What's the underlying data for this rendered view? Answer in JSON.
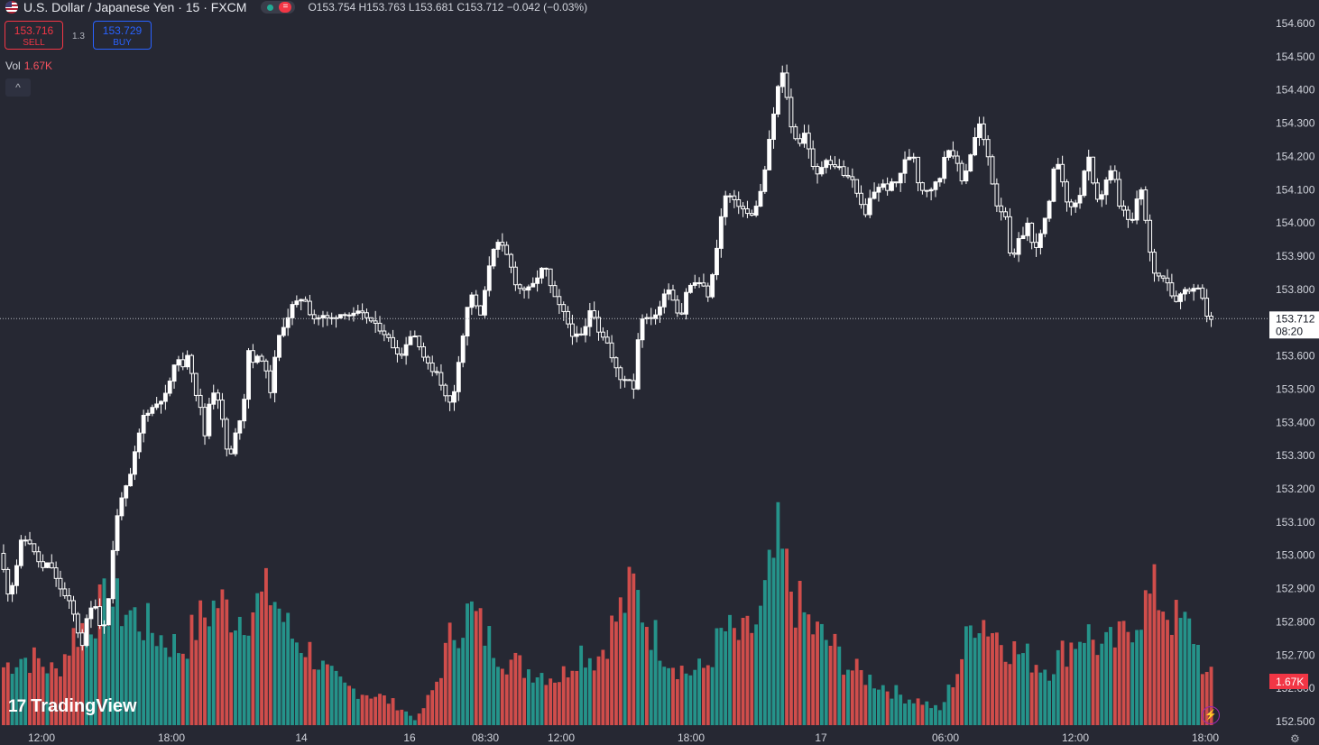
{
  "header": {
    "symbol": "U.S. Dollar / Japanese Yen · 15 · FXCM",
    "eq_icon": "equals-icon",
    "ohlc": {
      "o": "O153.754",
      "h": "H153.763",
      "l": "L153.681",
      "c": "C153.712",
      "chg": "−0.042 (−0.03%)"
    }
  },
  "trade": {
    "sell_price": "153.716",
    "sell_label": "SELL",
    "spread": "1.3",
    "buy_price": "153.729",
    "buy_label": "BUY"
  },
  "volume": {
    "label": "Vol",
    "value": "1.67K"
  },
  "collapse_icon": "^",
  "logo": {
    "mark": "17",
    "text": "TradingView"
  },
  "colors": {
    "up": "#ffffff",
    "down": "#ffffff",
    "vol_up": "#26a69a",
    "vol_down": "#ef5350",
    "bg": "#262833"
  },
  "chart_data": {
    "type": "candlestick",
    "price_axis": {
      "min": 152.5,
      "max": 154.6,
      "ticks": [
        "154.600",
        "154.500",
        "154.400",
        "154.300",
        "154.200",
        "154.100",
        "154.000",
        "153.900",
        "153.800",
        "153.700",
        "153.600",
        "153.500",
        "153.400",
        "153.300",
        "153.200",
        "153.100",
        "153.000",
        "152.900",
        "152.800",
        "152.700",
        "152.600",
        "152.500"
      ]
    },
    "time_ticks": [
      "12:00",
      "18:00",
      "14",
      "16",
      "08:30",
      "12:00",
      "18:00",
      "17",
      "06:00",
      "12:00",
      "18:00"
    ],
    "last_price": "153.712",
    "countdown": "08:20",
    "volume_last": "1.67K",
    "price_path": [
      [
        0,
        153.01
      ],
      [
        5,
        153.0
      ],
      [
        10,
        152.88
      ],
      [
        18,
        152.92
      ],
      [
        26,
        153.04
      ],
      [
        34,
        153.05
      ],
      [
        42,
        153.0
      ],
      [
        50,
        152.96
      ],
      [
        58,
        152.98
      ],
      [
        66,
        152.92
      ],
      [
        74,
        152.88
      ],
      [
        82,
        152.85
      ],
      [
        88,
        152.78
      ],
      [
        94,
        152.73
      ],
      [
        100,
        152.82
      ],
      [
        108,
        152.86
      ],
      [
        116,
        152.76
      ],
      [
        124,
        152.88
      ],
      [
        130,
        153.08
      ],
      [
        138,
        153.18
      ],
      [
        146,
        153.22
      ],
      [
        154,
        153.33
      ],
      [
        162,
        153.42
      ],
      [
        170,
        153.44
      ],
      [
        178,
        153.46
      ],
      [
        186,
        153.48
      ],
      [
        194,
        153.55
      ],
      [
        200,
        153.6
      ],
      [
        206,
        153.56
      ],
      [
        212,
        153.62
      ],
      [
        218,
        153.5
      ],
      [
        224,
        153.46
      ],
      [
        230,
        153.36
      ],
      [
        236,
        153.48
      ],
      [
        242,
        153.5
      ],
      [
        248,
        153.43
      ],
      [
        254,
        153.32
      ],
      [
        260,
        153.3
      ],
      [
        266,
        153.4
      ],
      [
        272,
        153.42
      ],
      [
        278,
        153.62
      ],
      [
        284,
        153.58
      ],
      [
        290,
        153.6
      ],
      [
        296,
        153.58
      ],
      [
        302,
        153.48
      ],
      [
        308,
        153.6
      ],
      [
        314,
        153.68
      ],
      [
        320,
        153.7
      ],
      [
        326,
        153.75
      ],
      [
        332,
        153.76
      ],
      [
        340,
        153.78
      ],
      [
        346,
        153.73
      ],
      [
        352,
        153.71
      ],
      [
        360,
        153.72
      ],
      [
        368,
        153.71
      ],
      [
        376,
        153.72
      ],
      [
        384,
        153.73
      ],
      [
        392,
        153.72
      ],
      [
        400,
        153.73
      ],
      [
        408,
        153.72
      ],
      [
        416,
        153.7
      ],
      [
        424,
        153.68
      ],
      [
        432,
        153.66
      ],
      [
        440,
        153.62
      ],
      [
        448,
        153.6
      ],
      [
        456,
        153.66
      ],
      [
        464,
        153.66
      ],
      [
        472,
        153.6
      ],
      [
        480,
        153.56
      ],
      [
        488,
        153.55
      ],
      [
        496,
        153.48
      ],
      [
        504,
        153.45
      ],
      [
        512,
        153.6
      ],
      [
        518,
        153.69
      ],
      [
        524,
        153.8
      ],
      [
        530,
        153.75
      ],
      [
        536,
        153.72
      ],
      [
        542,
        153.82
      ],
      [
        548,
        153.92
      ],
      [
        556,
        153.94
      ],
      [
        562,
        153.92
      ],
      [
        568,
        153.88
      ],
      [
        574,
        153.82
      ],
      [
        580,
        153.8
      ],
      [
        588,
        153.8
      ],
      [
        596,
        153.82
      ],
      [
        602,
        153.86
      ],
      [
        608,
        153.86
      ],
      [
        614,
        153.8
      ],
      [
        620,
        153.76
      ],
      [
        626,
        153.74
      ],
      [
        632,
        153.7
      ],
      [
        638,
        153.66
      ],
      [
        644,
        153.66
      ],
      [
        650,
        153.66
      ],
      [
        656,
        153.74
      ],
      [
        662,
        153.72
      ],
      [
        668,
        153.66
      ],
      [
        674,
        153.66
      ],
      [
        680,
        153.6
      ],
      [
        686,
        153.56
      ],
      [
        692,
        153.52
      ],
      [
        698,
        153.54
      ],
      [
        706,
        153.5
      ],
      [
        712,
        153.72
      ],
      [
        720,
        153.71
      ],
      [
        728,
        153.72
      ],
      [
        734,
        153.74
      ],
      [
        740,
        153.8
      ],
      [
        746,
        153.8
      ],
      [
        752,
        153.74
      ],
      [
        758,
        153.72
      ],
      [
        764,
        153.8
      ],
      [
        772,
        153.82
      ],
      [
        780,
        153.82
      ],
      [
        788,
        153.78
      ],
      [
        794,
        153.86
      ],
      [
        800,
        153.98
      ],
      [
        806,
        154.08
      ],
      [
        812,
        154.08
      ],
      [
        818,
        154.06
      ],
      [
        824,
        154.05
      ],
      [
        830,
        154.03
      ],
      [
        836,
        154.02
      ],
      [
        842,
        154.06
      ],
      [
        848,
        154.11
      ],
      [
        854,
        154.22
      ],
      [
        860,
        154.32
      ],
      [
        866,
        154.42
      ],
      [
        872,
        154.46
      ],
      [
        878,
        154.3
      ],
      [
        884,
        154.26
      ],
      [
        890,
        154.24
      ],
      [
        896,
        154.28
      ],
      [
        902,
        154.18
      ],
      [
        908,
        154.14
      ],
      [
        914,
        154.17
      ],
      [
        920,
        154.2
      ],
      [
        926,
        154.16
      ],
      [
        932,
        154.18
      ],
      [
        938,
        154.14
      ],
      [
        944,
        154.14
      ],
      [
        950,
        154.12
      ],
      [
        956,
        154.06
      ],
      [
        962,
        154.02
      ],
      [
        968,
        154.08
      ],
      [
        974,
        154.1
      ],
      [
        980,
        154.12
      ],
      [
        986,
        154.1
      ],
      [
        992,
        154.12
      ],
      [
        998,
        154.12
      ],
      [
        1004,
        154.18
      ],
      [
        1010,
        154.2
      ],
      [
        1016,
        154.2
      ],
      [
        1022,
        154.1
      ],
      [
        1028,
        154.1
      ],
      [
        1034,
        154.1
      ],
      [
        1040,
        154.12
      ],
      [
        1046,
        154.14
      ],
      [
        1052,
        154.24
      ],
      [
        1058,
        154.2
      ],
      [
        1064,
        154.18
      ],
      [
        1070,
        154.12
      ],
      [
        1076,
        154.18
      ],
      [
        1082,
        154.24
      ],
      [
        1088,
        154.3
      ],
      [
        1094,
        154.24
      ],
      [
        1100,
        154.18
      ],
      [
        1106,
        154.06
      ],
      [
        1112,
        154.04
      ],
      [
        1118,
        154.02
      ],
      [
        1124,
        153.86
      ],
      [
        1130,
        153.94
      ],
      [
        1136,
        153.96
      ],
      [
        1142,
        154.0
      ],
      [
        1148,
        153.92
      ],
      [
        1154,
        153.94
      ],
      [
        1160,
        154.0
      ],
      [
        1166,
        154.06
      ],
      [
        1172,
        154.18
      ],
      [
        1178,
        154.18
      ],
      [
        1184,
        154.06
      ],
      [
        1190,
        154.05
      ],
      [
        1196,
        154.06
      ],
      [
        1202,
        154.1
      ],
      [
        1208,
        154.22
      ],
      [
        1214,
        154.12
      ],
      [
        1220,
        154.06
      ],
      [
        1226,
        154.1
      ],
      [
        1232,
        154.16
      ],
      [
        1238,
        154.14
      ],
      [
        1244,
        154.04
      ],
      [
        1250,
        154.04
      ],
      [
        1256,
        153.98
      ],
      [
        1262,
        154.06
      ],
      [
        1268,
        154.1
      ],
      [
        1274,
        153.98
      ],
      [
        1280,
        153.86
      ],
      [
        1286,
        153.84
      ],
      [
        1292,
        153.84
      ],
      [
        1298,
        153.82
      ],
      [
        1304,
        153.76
      ],
      [
        1310,
        153.78
      ],
      [
        1316,
        153.8
      ],
      [
        1322,
        153.8
      ],
      [
        1328,
        153.8
      ],
      [
        1334,
        153.82
      ],
      [
        1338,
        153.72
      ],
      [
        1342,
        153.712
      ]
    ],
    "volume_path": [
      [
        0,
        60
      ],
      [
        20,
        72
      ],
      [
        40,
        68
      ],
      [
        60,
        55
      ],
      [
        80,
        95
      ],
      [
        100,
        115
      ],
      [
        120,
        130
      ],
      [
        140,
        120
      ],
      [
        160,
        105
      ],
      [
        180,
        90
      ],
      [
        200,
        80
      ],
      [
        220,
        110
      ],
      [
        240,
        130
      ],
      [
        260,
        115
      ],
      [
        280,
        125
      ],
      [
        300,
        140
      ],
      [
        320,
        95
      ],
      [
        340,
        80
      ],
      [
        360,
        55
      ],
      [
        380,
        40
      ],
      [
        400,
        35
      ],
      [
        420,
        30
      ],
      [
        440,
        20
      ],
      [
        460,
        5
      ],
      [
        480,
        40
      ],
      [
        500,
        100
      ],
      [
        520,
        120
      ],
      [
        540,
        90
      ],
      [
        560,
        70
      ],
      [
        580,
        60
      ],
      [
        600,
        55
      ],
      [
        620,
        50
      ],
      [
        640,
        80
      ],
      [
        660,
        70
      ],
      [
        680,
        110
      ],
      [
        700,
        145
      ],
      [
        720,
        100
      ],
      [
        740,
        70
      ],
      [
        760,
        55
      ],
      [
        780,
        60
      ],
      [
        800,
        100
      ],
      [
        820,
        90
      ],
      [
        840,
        110
      ],
      [
        860,
        190
      ],
      [
        880,
        130
      ],
      [
        900,
        100
      ],
      [
        920,
        85
      ],
      [
        940,
        60
      ],
      [
        960,
        50
      ],
      [
        980,
        40
      ],
      [
        1000,
        30
      ],
      [
        1020,
        25
      ],
      [
        1040,
        15
      ],
      [
        1060,
        60
      ],
      [
        1080,
        120
      ],
      [
        1100,
        100
      ],
      [
        1120,
        80
      ],
      [
        1140,
        70
      ],
      [
        1160,
        60
      ],
      [
        1180,
        80
      ],
      [
        1200,
        100
      ],
      [
        1220,
        80
      ],
      [
        1240,
        90
      ],
      [
        1260,
        120
      ],
      [
        1280,
        140
      ],
      [
        1300,
        110
      ],
      [
        1320,
        100
      ],
      [
        1336,
        50
      ]
    ]
  }
}
